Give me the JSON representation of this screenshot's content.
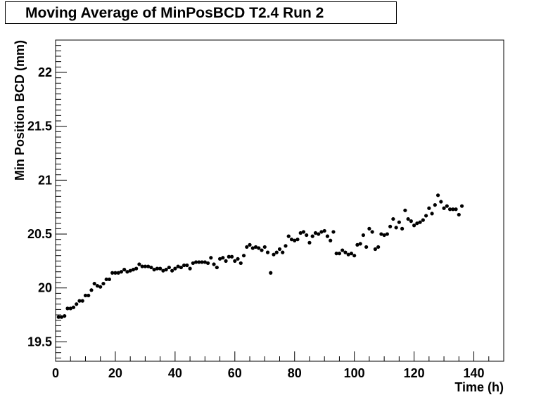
{
  "chart_data": {
    "type": "scatter",
    "title": "Moving Average of MinPosBCD T2.4 Run 2",
    "xlabel": "Time (h)",
    "ylabel": "Min Position BCD (mm)",
    "xlim": [
      0,
      150
    ],
    "ylim": [
      19.32,
      22.3
    ],
    "x_ticks": [
      0,
      20,
      40,
      60,
      80,
      100,
      120,
      140
    ],
    "x_tick_labels": [
      "0",
      "20",
      "40",
      "60",
      "80",
      "100",
      "120",
      "140"
    ],
    "y_ticks": [
      19.5,
      20,
      20.5,
      21,
      21.5,
      22
    ],
    "y_tick_labels": [
      "19.5",
      "20",
      "20.5",
      "21",
      "21.5",
      "22"
    ],
    "grid": false,
    "marker_color": "#000000",
    "points": [
      [
        1,
        19.73
      ],
      [
        2,
        19.73
      ],
      [
        3,
        19.74
      ],
      [
        4,
        19.81
      ],
      [
        5,
        19.81
      ],
      [
        6,
        19.82
      ],
      [
        7,
        19.85
      ],
      [
        8,
        19.88
      ],
      [
        9,
        19.88
      ],
      [
        10,
        19.93
      ],
      [
        11,
        19.93
      ],
      [
        12,
        19.98
      ],
      [
        13,
        20.04
      ],
      [
        14,
        20.02
      ],
      [
        15,
        20.01
      ],
      [
        16,
        20.04
      ],
      [
        17,
        20.08
      ],
      [
        18,
        20.08
      ],
      [
        19,
        20.14
      ],
      [
        20,
        20.14
      ],
      [
        21,
        20.14
      ],
      [
        22,
        20.15
      ],
      [
        23,
        20.17
      ],
      [
        24,
        20.15
      ],
      [
        25,
        20.16
      ],
      [
        26,
        20.17
      ],
      [
        27,
        20.18
      ],
      [
        28,
        20.22
      ],
      [
        29,
        20.2
      ],
      [
        30,
        20.2
      ],
      [
        31,
        20.2
      ],
      [
        32,
        20.19
      ],
      [
        33,
        20.17
      ],
      [
        34,
        20.18
      ],
      [
        35,
        20.18
      ],
      [
        36,
        20.16
      ],
      [
        37,
        20.17
      ],
      [
        38,
        20.19
      ],
      [
        39,
        20.16
      ],
      [
        40,
        20.18
      ],
      [
        41,
        20.2
      ],
      [
        42,
        20.19
      ],
      [
        43,
        20.21
      ],
      [
        44,
        20.21
      ],
      [
        45,
        20.18
      ],
      [
        46,
        20.23
      ],
      [
        47,
        20.24
      ],
      [
        48,
        20.24
      ],
      [
        49,
        20.24
      ],
      [
        50,
        20.24
      ],
      [
        51,
        20.23
      ],
      [
        52,
        20.28
      ],
      [
        53,
        20.22
      ],
      [
        54,
        20.19
      ],
      [
        55,
        20.27
      ],
      [
        56,
        20.28
      ],
      [
        57,
        20.25
      ],
      [
        58,
        20.29
      ],
      [
        59,
        20.29
      ],
      [
        60,
        20.25
      ],
      [
        61,
        20.27
      ],
      [
        62,
        20.23
      ],
      [
        63,
        20.3
      ],
      [
        64,
        20.38
      ],
      [
        65,
        20.4
      ],
      [
        66,
        20.37
      ],
      [
        67,
        20.38
      ],
      [
        68,
        20.37
      ],
      [
        69,
        20.35
      ],
      [
        70,
        20.38
      ],
      [
        71,
        20.33
      ],
      [
        72,
        20.14
      ],
      [
        73,
        20.31
      ],
      [
        74,
        20.33
      ],
      [
        75,
        20.36
      ],
      [
        76,
        20.33
      ],
      [
        77,
        20.39
      ],
      [
        78,
        20.48
      ],
      [
        79,
        20.45
      ],
      [
        80,
        20.44
      ],
      [
        81,
        20.45
      ],
      [
        82,
        20.51
      ],
      [
        83,
        20.52
      ],
      [
        84,
        20.49
      ],
      [
        85,
        20.42
      ],
      [
        86,
        20.48
      ],
      [
        87,
        20.51
      ],
      [
        88,
        20.5
      ],
      [
        89,
        20.52
      ],
      [
        90,
        20.53
      ],
      [
        91,
        20.48
      ],
      [
        92,
        20.44
      ],
      [
        93,
        20.52
      ],
      [
        94,
        20.32
      ],
      [
        95,
        20.32
      ],
      [
        96,
        20.35
      ],
      [
        97,
        20.33
      ],
      [
        98,
        20.31
      ],
      [
        99,
        20.32
      ],
      [
        100,
        20.3
      ],
      [
        101,
        20.4
      ],
      [
        102,
        20.41
      ],
      [
        103,
        20.49
      ],
      [
        104,
        20.38
      ],
      [
        105,
        20.55
      ],
      [
        106,
        20.52
      ],
      [
        107,
        20.36
      ],
      [
        108,
        20.38
      ],
      [
        109,
        20.5
      ],
      [
        110,
        20.49
      ],
      [
        111,
        20.5
      ],
      [
        112,
        20.57
      ],
      [
        113,
        20.64
      ],
      [
        114,
        20.56
      ],
      [
        115,
        20.61
      ],
      [
        116,
        20.55
      ],
      [
        117,
        20.72
      ],
      [
        118,
        20.64
      ],
      [
        119,
        20.62
      ],
      [
        120,
        20.58
      ],
      [
        121,
        20.6
      ],
      [
        122,
        20.61
      ],
      [
        123,
        20.63
      ],
      [
        124,
        20.67
      ],
      [
        125,
        20.74
      ],
      [
        126,
        20.69
      ],
      [
        127,
        20.77
      ],
      [
        128,
        20.86
      ],
      [
        129,
        20.8
      ],
      [
        130,
        20.74
      ],
      [
        131,
        20.76
      ],
      [
        132,
        20.73
      ],
      [
        133,
        20.73
      ],
      [
        134,
        20.73
      ],
      [
        135,
        20.68
      ],
      [
        136,
        20.76
      ]
    ]
  }
}
